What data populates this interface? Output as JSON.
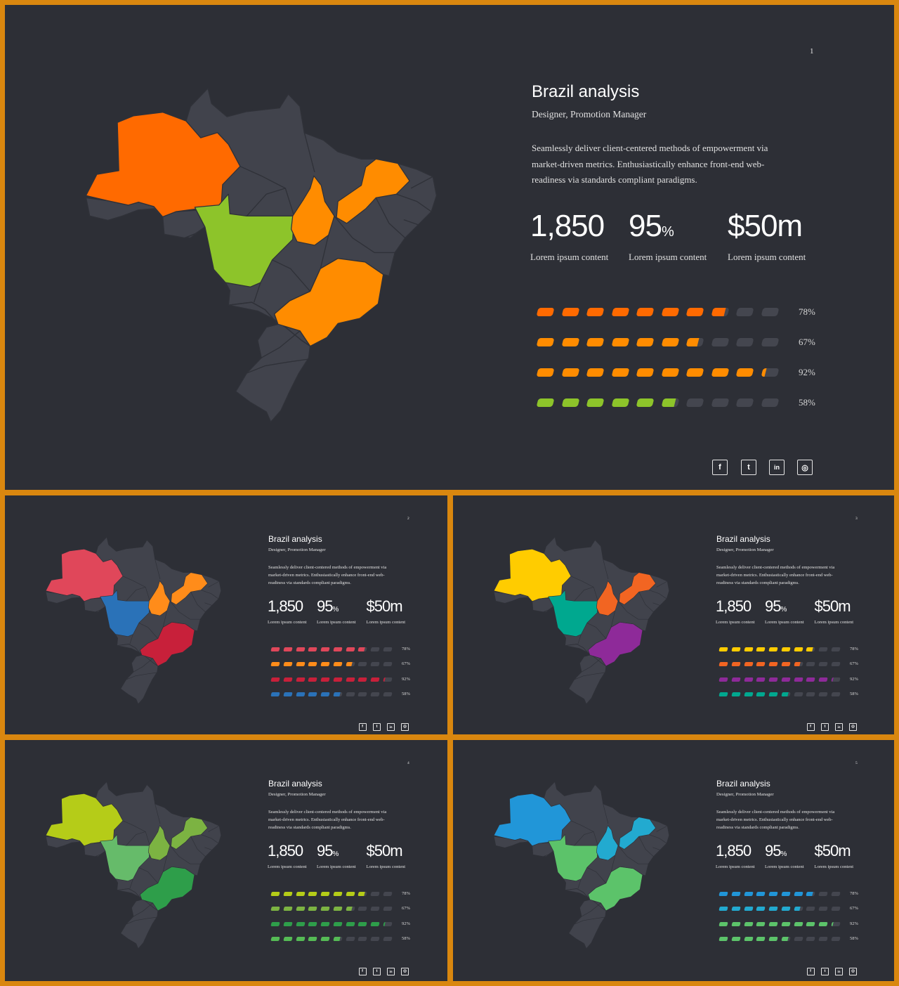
{
  "colors": {
    "background": "#d9870f",
    "slide_bg": "#2d2f36",
    "map_base": "#41434c",
    "map_border": "#2f3138",
    "bar_empty": "#44464f"
  },
  "common": {
    "title": "Brazil analysis",
    "subtitle": "Designer, Promotion Manager",
    "description": "Seamlessly deliver client-centered methods of empowerment via market-driven metrics. Enthusiastically enhance front-end web-readiness via standards compliant paradigms.",
    "stats": [
      {
        "value": "1,850",
        "suffix": "",
        "caption": "Lorem ipsum content"
      },
      {
        "value": "95",
        "suffix": "%",
        "caption": "Lorem ipsum content"
      },
      {
        "value": "$50m",
        "suffix": "",
        "caption": "Lorem ipsum content"
      }
    ],
    "bars": [
      {
        "label": "78%",
        "value": 0.78
      },
      {
        "label": "67%",
        "value": 0.67
      },
      {
        "label": "92%",
        "value": 0.92
      },
      {
        "label": "58%",
        "value": 0.58
      }
    ],
    "social_icons": [
      "facebook-icon",
      "twitter-icon",
      "linkedin-icon",
      "instagram-icon"
    ]
  },
  "slides": [
    {
      "page": "1",
      "bar_colors": [
        "#ff6a00",
        "#ff8c00",
        "#ff8c00",
        "#8dc42a"
      ],
      "region_colors": {
        "amazonas": "#ff6a00",
        "mato_grosso": "#8dc42a",
        "tocantins": "#ff8c00",
        "para_east": "#ff8c00",
        "minas": "#ff8c00"
      }
    },
    {
      "page": "2",
      "bar_colors": [
        "#e0475a",
        "#ff8c1a",
        "#c8203a",
        "#2a72b8"
      ],
      "region_colors": {
        "amazonas": "#e0475a",
        "mato_grosso": "#2a72b8",
        "tocantins": "#ff8c1a",
        "para_east": "#ff8c1a",
        "minas": "#c8203a"
      }
    },
    {
      "page": "3",
      "bar_colors": [
        "#ffcc00",
        "#f26522",
        "#8e2a99",
        "#00a88f"
      ],
      "region_colors": {
        "amazonas": "#ffcc00",
        "mato_grosso": "#00a88f",
        "tocantins": "#f26522",
        "para_east": "#f26522",
        "minas": "#8e2a99"
      }
    },
    {
      "page": "4",
      "bar_colors": [
        "#b5cc18",
        "#7cb342",
        "#2e9e4a",
        "#55bb55"
      ],
      "region_colors": {
        "amazonas": "#b5cc18",
        "mato_grosso": "#66bb6a",
        "tocantins": "#7cb342",
        "para_east": "#7cb342",
        "minas": "#2e9e4a"
      }
    },
    {
      "page": "5",
      "bar_colors": [
        "#2196d8",
        "#22aad0",
        "#5cc36a",
        "#5cc36a"
      ],
      "region_colors": {
        "amazonas": "#2196d8",
        "mato_grosso": "#5cc36a",
        "tocantins": "#22aad0",
        "para_east": "#22aad0",
        "minas": "#5cc36a"
      }
    }
  ]
}
